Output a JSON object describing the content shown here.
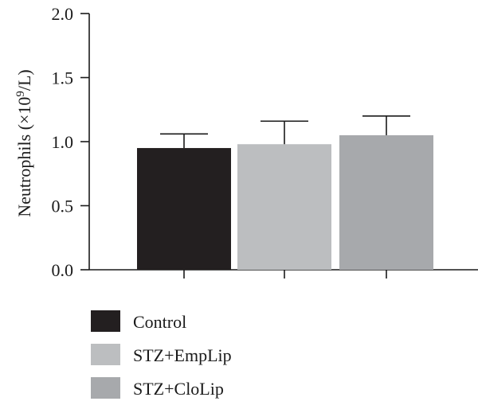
{
  "chart_data": {
    "type": "bar",
    "title": "",
    "xlabel": "",
    "ylabel": {
      "prefix": "Neutrophils (×10",
      "superscript": "9",
      "suffix": "/L)"
    },
    "ylim": [
      0,
      2.0
    ],
    "y_ticks": [
      "0.0",
      "0.5",
      "1.0",
      "1.5",
      "2.0"
    ],
    "grid": false,
    "legend_position": "bottom-left",
    "series": [
      {
        "name": "Control",
        "value": 0.95,
        "error": 0.11,
        "color": "#231f20"
      },
      {
        "name": "STZ+EmpLip",
        "value": 0.98,
        "error": 0.18,
        "color": "#bcbec0"
      },
      {
        "name": "STZ+CloLip",
        "value": 1.05,
        "error": 0.15,
        "color": "#a7a9ac"
      }
    ]
  }
}
